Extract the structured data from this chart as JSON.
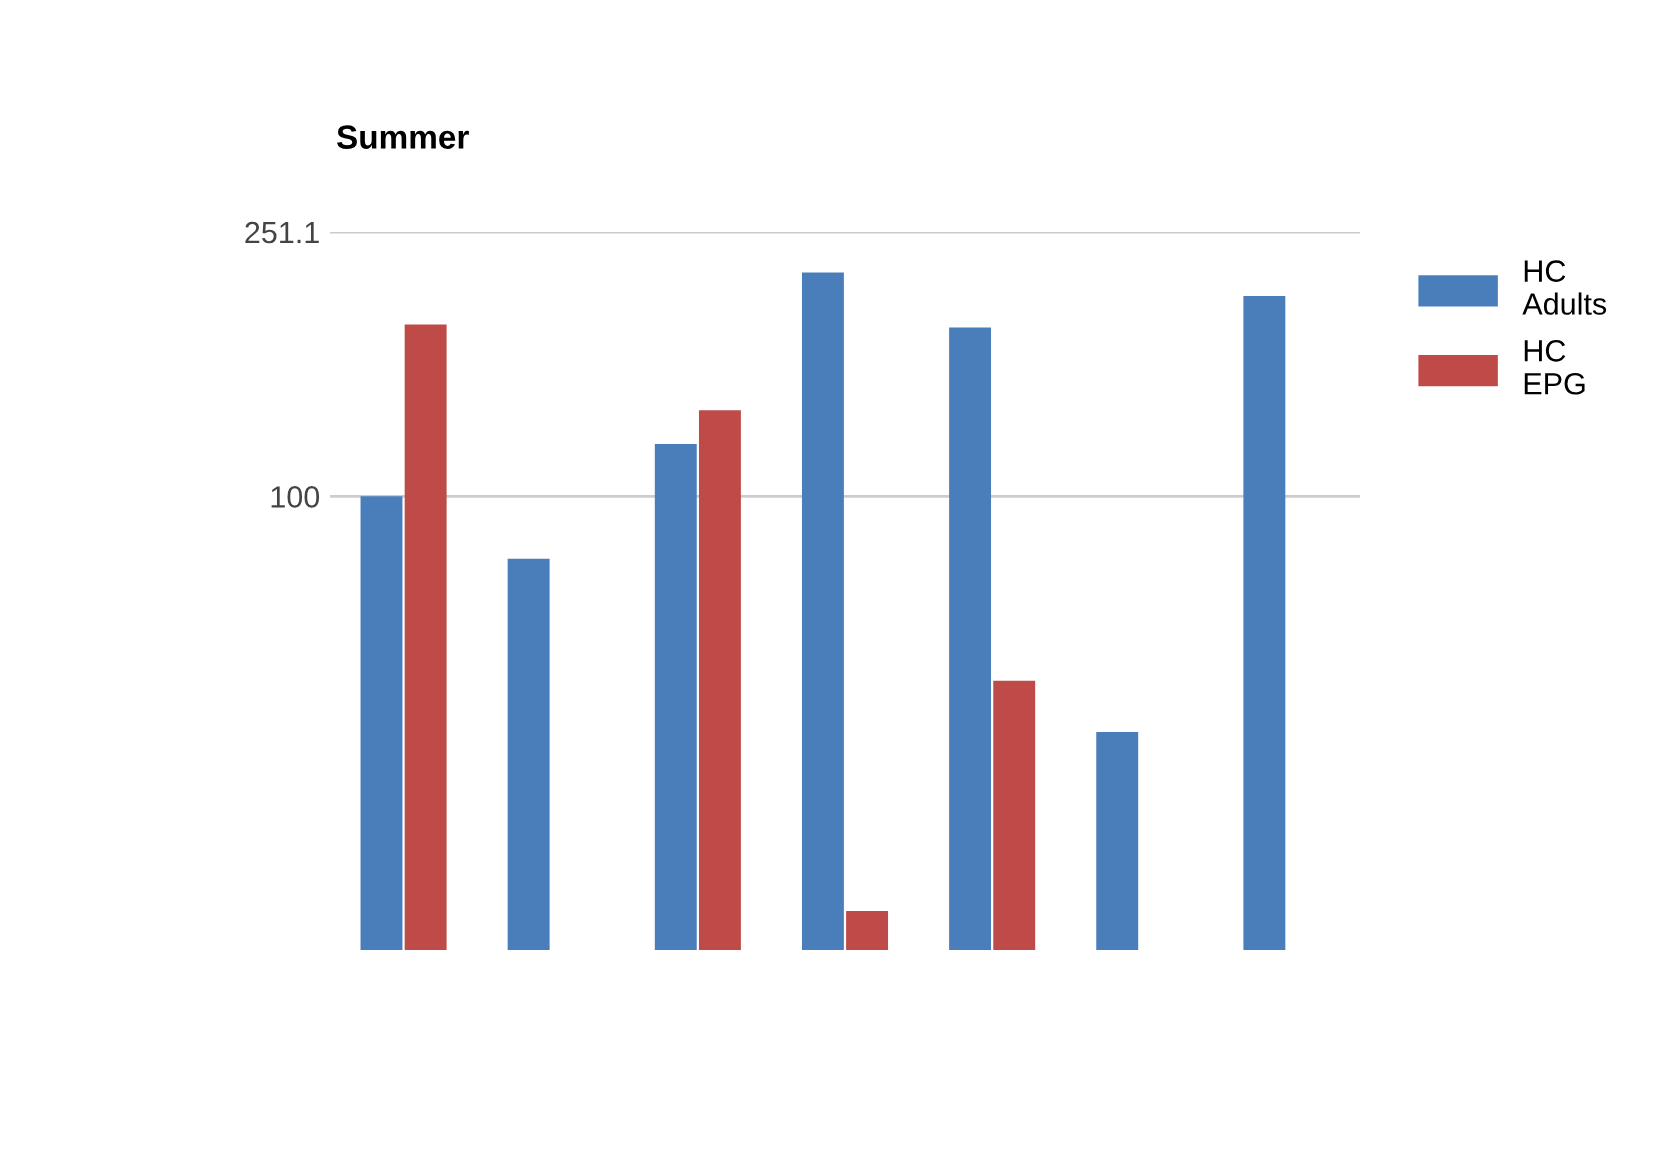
{
  "chart_data": {
    "type": "bar",
    "title": "Summer",
    "categories": [
      null,
      null,
      null,
      null,
      null,
      null,
      null
    ],
    "series": [
      {
        "name": "HC Adults",
        "color": "#4a7ebb",
        "values": [
          100,
          80.5,
          120,
          218,
          180,
          44,
          201
        ]
      },
      {
        "name": "HC EPG",
        "color": "#be4b48",
        "values": [
          182,
          null,
          135,
          23.6,
          52.6,
          null,
          null
        ]
      }
    ],
    "log": true,
    "ylim": [
      20.6,
      251.1
    ],
    "yticks": [
      100,
      251.1
    ],
    "grid": "y",
    "legend": "top right"
  }
}
